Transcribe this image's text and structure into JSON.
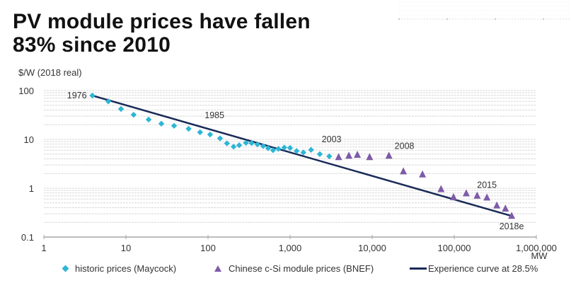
{
  "header": {
    "title_line1": "PV module prices have fallen",
    "title_line2": "83% since 2010",
    "unit_label": "$/W (2018 real)"
  },
  "colors": {
    "historic": "#2eb5d6",
    "chinese": "#7e5ba7",
    "experience": "#1a2a57",
    "grid": "#d9d9d9",
    "axis": "#a6a6a6"
  },
  "chart_data": {
    "type": "scatter",
    "title": "PV module prices have fallen 83% since 2010",
    "xlabel": "MW",
    "ylabel": "$/W (2018 real)",
    "xscale": "log",
    "yscale": "log",
    "xlim": [
      1,
      1000000
    ],
    "ylim": [
      0.1,
      100
    ],
    "grid": true,
    "x_ticks": [
      {
        "value": 1,
        "label": "1"
      },
      {
        "value": 10,
        "label": "10"
      },
      {
        "value": 100,
        "label": "100"
      },
      {
        "value": 1000,
        "label": "1,000"
      },
      {
        "value": 10000,
        "label": "10,000"
      },
      {
        "value": 100000,
        "label": "100,000"
      },
      {
        "value": 1000000,
        "label": "1,000,000"
      }
    ],
    "y_ticks": [
      {
        "value": 100,
        "label": "100"
      },
      {
        "value": 10,
        "label": "10"
      },
      {
        "value": 1,
        "label": "1"
      },
      {
        "value": 0.1,
        "label": "0.1"
      }
    ],
    "series": [
      {
        "name": "historic prices (Maycock)",
        "marker": "diamond",
        "points": [
          {
            "x": 3.9,
            "y": 79
          },
          {
            "x": 6.1,
            "y": 60
          },
          {
            "x": 8.7,
            "y": 42
          },
          {
            "x": 12.4,
            "y": 32
          },
          {
            "x": 18.9,
            "y": 25.5
          },
          {
            "x": 27,
            "y": 21
          },
          {
            "x": 38.6,
            "y": 19
          },
          {
            "x": 58,
            "y": 16.5
          },
          {
            "x": 80,
            "y": 14
          },
          {
            "x": 106,
            "y": 12.6
          },
          {
            "x": 140,
            "y": 10.5
          },
          {
            "x": 170,
            "y": 8.3
          },
          {
            "x": 205,
            "y": 7.1
          },
          {
            "x": 240,
            "y": 7.6
          },
          {
            "x": 290,
            "y": 8.5
          },
          {
            "x": 340,
            "y": 8.4
          },
          {
            "x": 400,
            "y": 7.9
          },
          {
            "x": 470,
            "y": 7.3
          },
          {
            "x": 540,
            "y": 6.6
          },
          {
            "x": 620,
            "y": 6.0
          },
          {
            "x": 720,
            "y": 6.4
          },
          {
            "x": 850,
            "y": 6.8
          },
          {
            "x": 1000,
            "y": 6.7
          },
          {
            "x": 1200,
            "y": 5.8
          },
          {
            "x": 1450,
            "y": 5.4
          },
          {
            "x": 1800,
            "y": 6.1
          },
          {
            "x": 2300,
            "y": 5.0
          },
          {
            "x": 3000,
            "y": 4.5
          }
        ]
      },
      {
        "name": "Chinese c-Si module prices (BNEF)",
        "marker": "triangle",
        "points": [
          {
            "x": 3900,
            "y": 4.3
          },
          {
            "x": 5200,
            "y": 4.6
          },
          {
            "x": 6600,
            "y": 4.8
          },
          {
            "x": 9300,
            "y": 4.3
          },
          {
            "x": 16000,
            "y": 4.6
          },
          {
            "x": 24000,
            "y": 2.2
          },
          {
            "x": 41000,
            "y": 1.9
          },
          {
            "x": 69000,
            "y": 0.95
          },
          {
            "x": 98000,
            "y": 0.65
          },
          {
            "x": 140000,
            "y": 0.78
          },
          {
            "x": 190000,
            "y": 0.7
          },
          {
            "x": 250000,
            "y": 0.64
          },
          {
            "x": 330000,
            "y": 0.44
          },
          {
            "x": 420000,
            "y": 0.38
          },
          {
            "x": 500000,
            "y": 0.27
          }
        ]
      },
      {
        "name": "Experience curve at 28.5%",
        "type": "line",
        "points": [
          {
            "x": 3.9,
            "y": 79
          },
          {
            "x": 500000,
            "y": 0.27
          }
        ]
      }
    ],
    "annotations": [
      {
        "text": "1976",
        "x": 3.9,
        "y": 79,
        "pos": "left"
      },
      {
        "text": "1985",
        "x": 120,
        "y": 17,
        "pos": "above"
      },
      {
        "text": "2003",
        "x": 3200,
        "y": 5.5,
        "pos": "above"
      },
      {
        "text": "2008",
        "x": 16000,
        "y": 4.6,
        "pos": "above-right"
      },
      {
        "text": "2015",
        "x": 250000,
        "y": 0.64,
        "pos": "above"
      },
      {
        "text": "2018e",
        "x": 500000,
        "y": 0.27,
        "pos": "below"
      }
    ],
    "legend": {
      "placement": "bottom",
      "items": [
        {
          "label": "historic prices (Maycock)",
          "symbol": "diamond"
        },
        {
          "label": "Chinese c-Si module prices (BNEF)",
          "symbol": "triangle"
        },
        {
          "label": "Experience curve at 28.5%",
          "symbol": "line"
        }
      ]
    }
  }
}
